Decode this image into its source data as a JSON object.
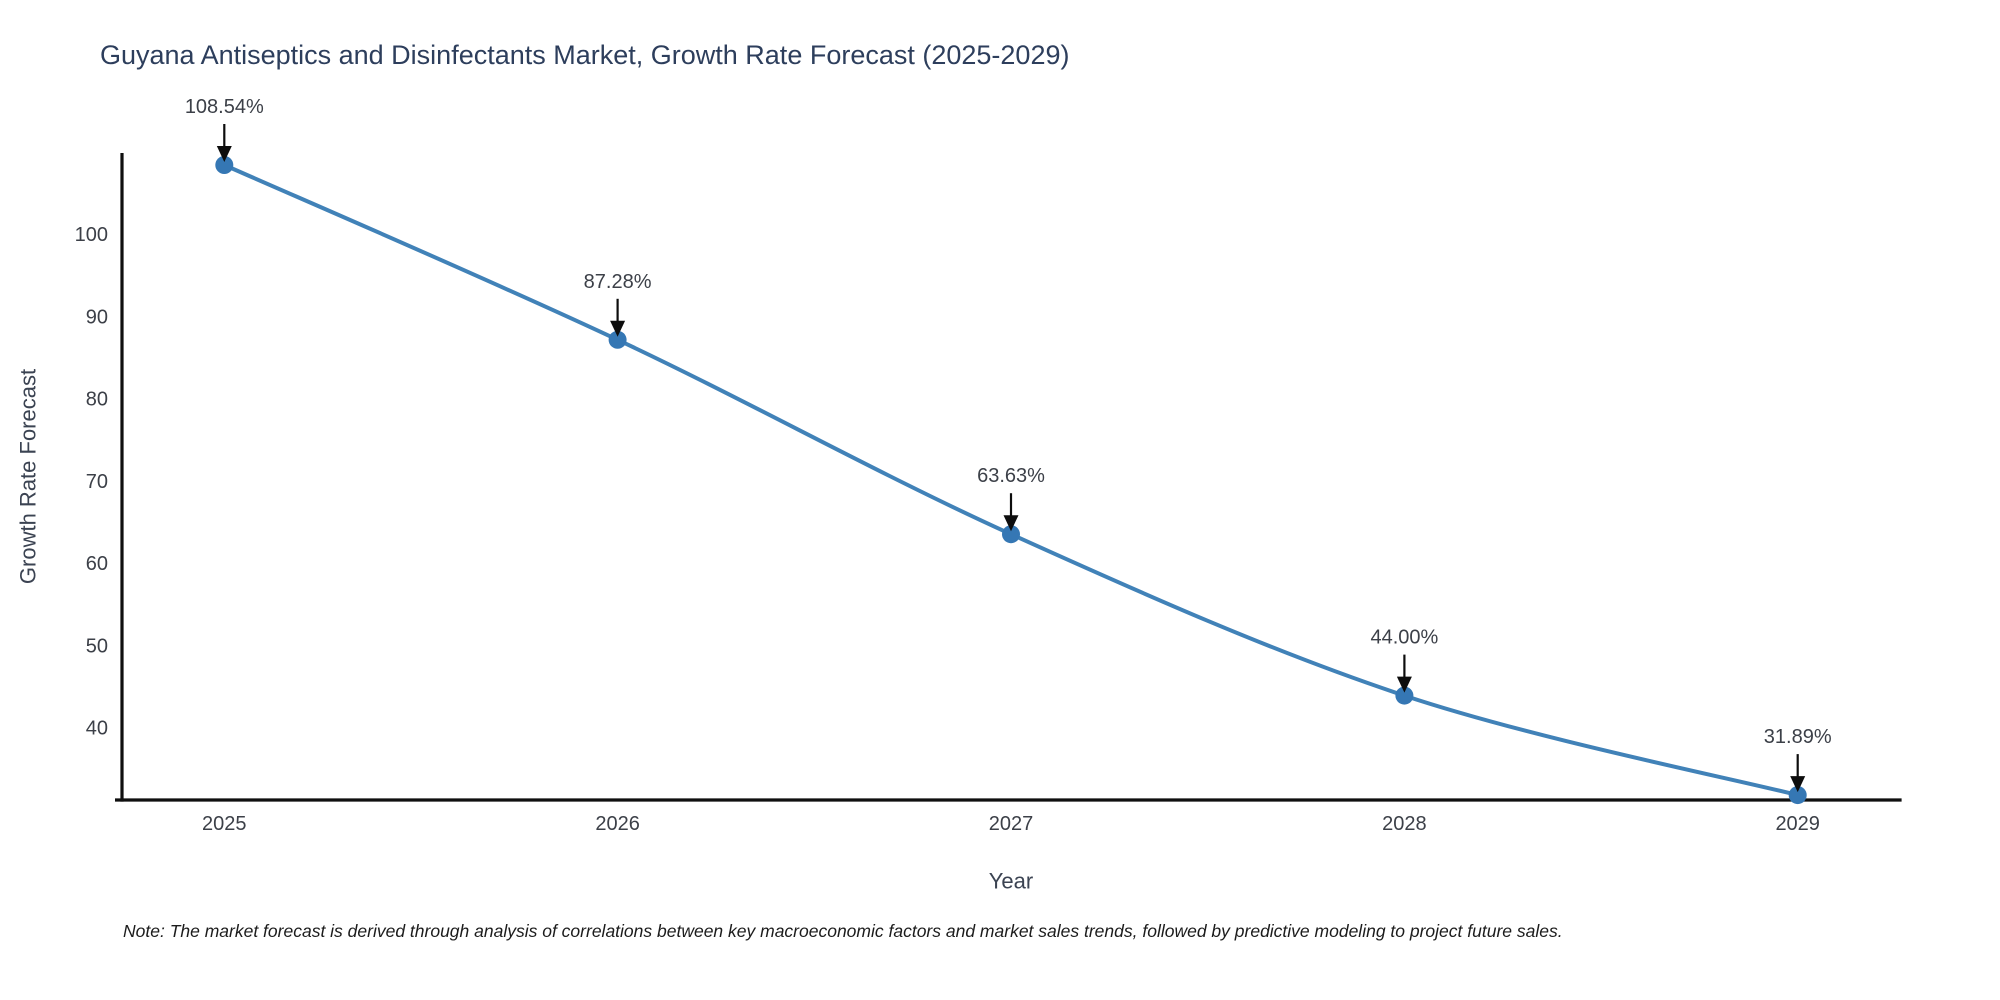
{
  "note": "Note: The market forecast is derived through analysis of correlations between key macroeconomic factors and market sales trends, followed by predictive modeling to project future sales.",
  "chart_data": {
    "type": "line",
    "title": "Guyana Antiseptics and Disinfectants Market, Growth Rate Forecast (2025-2029)",
    "x": [
      2025,
      2026,
      2027,
      2028,
      2029
    ],
    "series": [
      {
        "name": "Growth Rate Forecast",
        "values": [
          108.54,
          87.28,
          63.63,
          44.0,
          31.89
        ]
      }
    ],
    "point_labels": [
      "108.54%",
      "87.28%",
      "63.63%",
      "44.00%",
      "31.89%"
    ],
    "xlabel": "Year",
    "ylabel": "Growth Rate Forecast",
    "yticks": [
      40,
      50,
      60,
      70,
      80,
      90,
      100
    ],
    "xticks": [
      "2025",
      "2026",
      "2027",
      "2028",
      "2029"
    ],
    "xlim": [
      2024.74,
      2029.26
    ],
    "ylim": [
      31.3,
      110.0
    ],
    "grid": false,
    "legend_position": "none",
    "smooth": true,
    "colors": {
      "line": "#4182b8",
      "marker": "#3577b4",
      "axis": "#0f0f0f",
      "tick_text": "#3c4048",
      "annotation_text": "#3c4048",
      "annotation_arrow": "#0d0d0d",
      "axis_title_text": "#3b4352",
      "title_text": "#2d3e5c",
      "background": "#ffffff"
    }
  }
}
